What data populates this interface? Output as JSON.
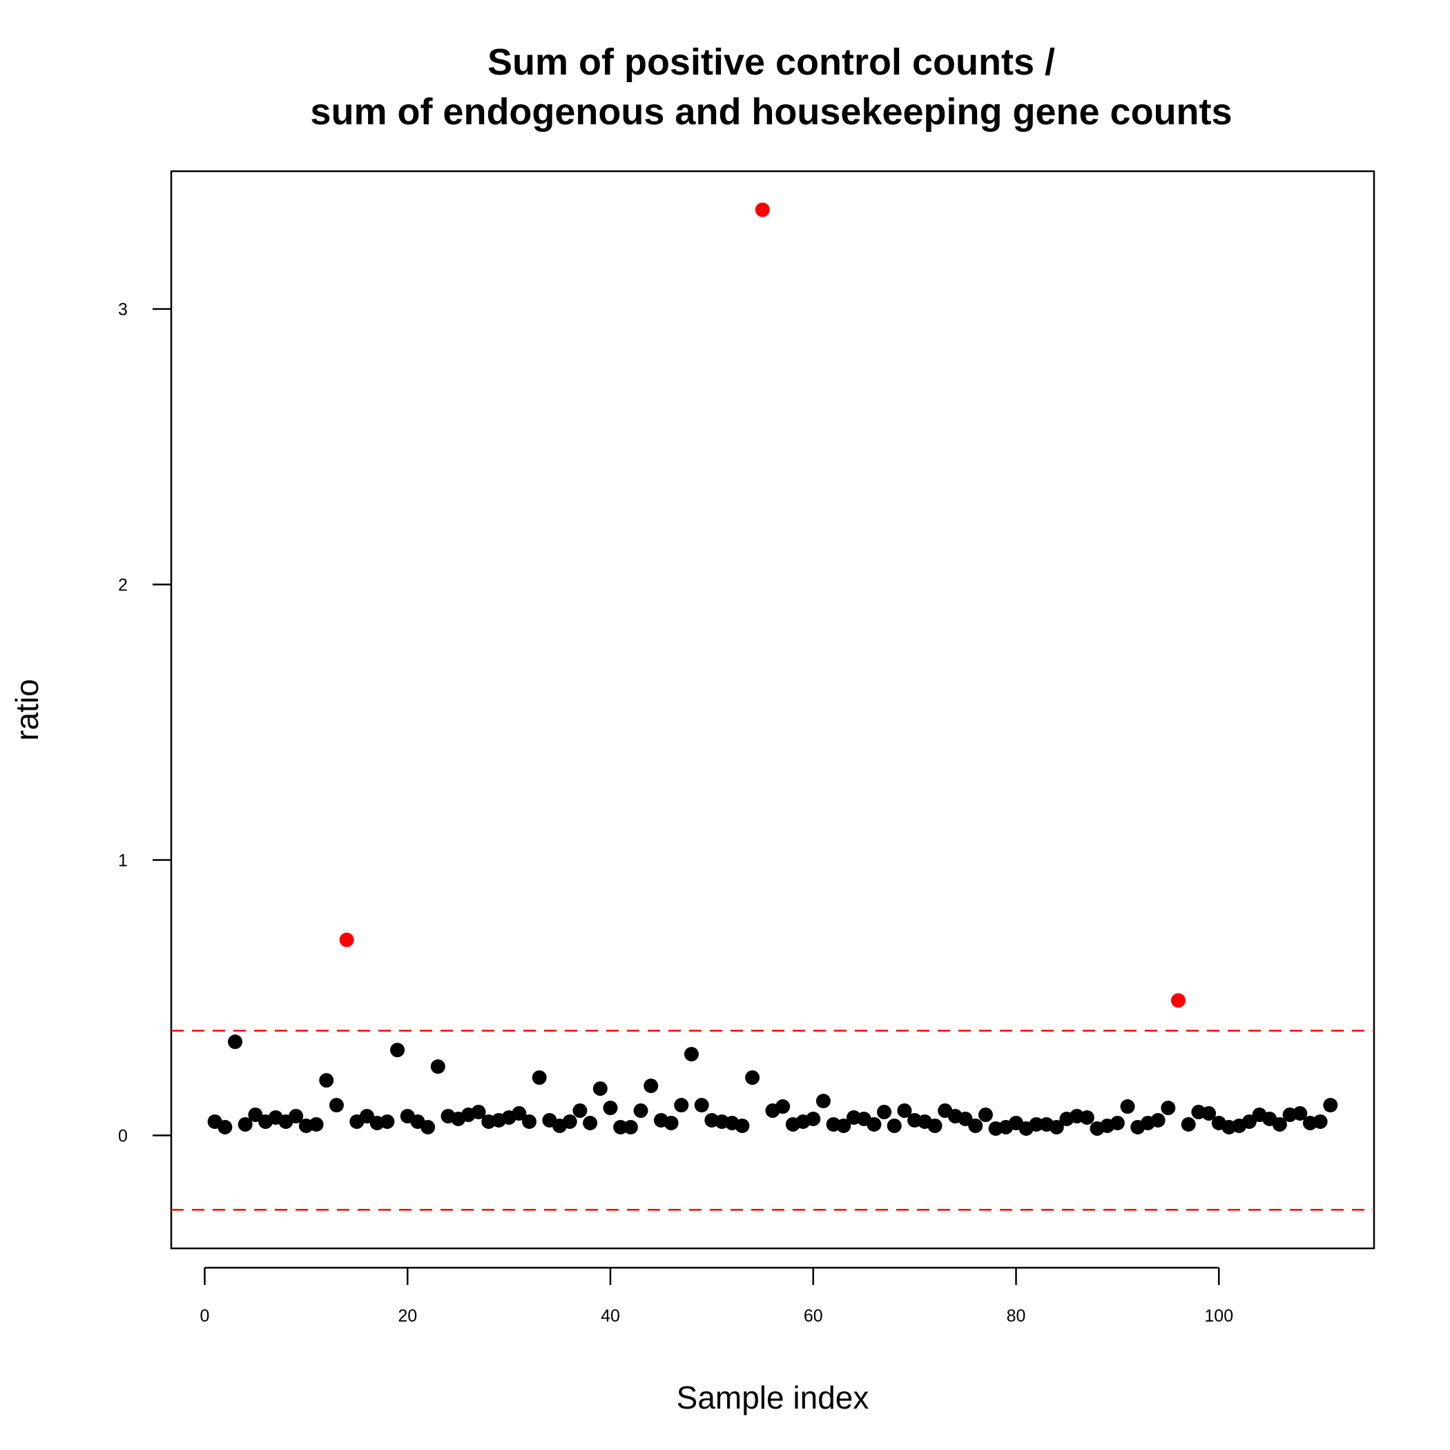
{
  "chart_data": {
    "type": "scatter",
    "title": [
      "Sum of positive control counts /",
      "sum of endogenous and housekeeping gene counts"
    ],
    "xlabel": "Sample index",
    "ylabel": "ratio",
    "xlim": [
      -3.3,
      115.3
    ],
    "ylim": [
      -0.41,
      3.5
    ],
    "x_ticks": [
      0,
      20,
      40,
      60,
      80,
      100
    ],
    "y_ticks": [
      0,
      1,
      2,
      3
    ],
    "grid": false,
    "legend": "none",
    "threshold_lines": {
      "style": "dashed",
      "color": "#ff0000",
      "values": [
        0.38,
        -0.27
      ]
    },
    "colors": {
      "normal": "#000000",
      "outlier": "#ff0000"
    },
    "series": [
      {
        "color": "#000000",
        "points": [
          [
            1,
            0.05
          ],
          [
            2,
            0.03
          ],
          [
            3,
            0.34
          ],
          [
            4,
            0.04
          ],
          [
            5,
            0.075
          ],
          [
            6,
            0.05
          ],
          [
            7,
            0.065
          ],
          [
            8,
            0.05
          ],
          [
            9,
            0.07
          ],
          [
            10,
            0.035
          ],
          [
            11,
            0.04
          ],
          [
            12,
            0.2
          ],
          [
            13,
            0.11
          ],
          [
            15,
            0.05
          ],
          [
            16,
            0.07
          ],
          [
            17,
            0.045
          ],
          [
            18,
            0.05
          ],
          [
            19,
            0.31
          ],
          [
            20,
            0.07
          ],
          [
            21,
            0.05
          ],
          [
            22,
            0.03
          ],
          [
            23,
            0.25
          ],
          [
            24,
            0.07
          ],
          [
            25,
            0.06
          ],
          [
            26,
            0.075
          ],
          [
            27,
            0.085
          ],
          [
            28,
            0.05
          ],
          [
            29,
            0.055
          ],
          [
            30,
            0.065
          ],
          [
            31,
            0.08
          ],
          [
            32,
            0.05
          ],
          [
            33,
            0.21
          ],
          [
            34,
            0.055
          ],
          [
            35,
            0.035
          ],
          [
            36,
            0.05
          ],
          [
            37,
            0.09
          ],
          [
            38,
            0.045
          ],
          [
            39,
            0.17
          ],
          [
            40,
            0.1
          ],
          [
            41,
            0.03
          ],
          [
            42,
            0.03
          ],
          [
            43,
            0.09
          ],
          [
            44,
            0.18
          ],
          [
            45,
            0.055
          ],
          [
            46,
            0.045
          ],
          [
            47,
            0.11
          ],
          [
            48,
            0.295
          ],
          [
            49,
            0.11
          ],
          [
            50,
            0.055
          ],
          [
            51,
            0.05
          ],
          [
            52,
            0.045
          ],
          [
            53,
            0.035
          ],
          [
            54,
            0.21
          ],
          [
            56,
            0.09
          ],
          [
            57,
            0.105
          ],
          [
            58,
            0.04
          ],
          [
            59,
            0.05
          ],
          [
            60,
            0.06
          ],
          [
            61,
            0.125
          ],
          [
            62,
            0.04
          ],
          [
            63,
            0.035
          ],
          [
            64,
            0.065
          ],
          [
            65,
            0.06
          ],
          [
            66,
            0.04
          ],
          [
            67,
            0.085
          ],
          [
            68,
            0.035
          ],
          [
            69,
            0.09
          ],
          [
            70,
            0.055
          ],
          [
            71,
            0.05
          ],
          [
            72,
            0.035
          ],
          [
            73,
            0.09
          ],
          [
            74,
            0.07
          ],
          [
            75,
            0.06
          ],
          [
            76,
            0.035
          ],
          [
            77,
            0.075
          ],
          [
            78,
            0.025
          ],
          [
            79,
            0.03
          ],
          [
            80,
            0.045
          ],
          [
            81,
            0.025
          ],
          [
            82,
            0.04
          ],
          [
            83,
            0.04
          ],
          [
            84,
            0.03
          ],
          [
            85,
            0.06
          ],
          [
            86,
            0.07
          ],
          [
            87,
            0.065
          ],
          [
            88,
            0.025
          ],
          [
            89,
            0.035
          ],
          [
            90,
            0.045
          ],
          [
            91,
            0.105
          ],
          [
            92,
            0.03
          ],
          [
            93,
            0.045
          ],
          [
            94,
            0.055
          ],
          [
            95,
            0.1
          ],
          [
            97,
            0.04
          ],
          [
            98,
            0.085
          ],
          [
            99,
            0.08
          ],
          [
            100,
            0.045
          ],
          [
            101,
            0.03
          ],
          [
            102,
            0.035
          ],
          [
            103,
            0.05
          ],
          [
            104,
            0.075
          ],
          [
            105,
            0.06
          ],
          [
            106,
            0.04
          ],
          [
            107,
            0.075
          ],
          [
            108,
            0.08
          ],
          [
            109,
            0.045
          ],
          [
            110,
            0.05
          ],
          [
            111,
            0.11
          ]
        ]
      },
      {
        "color": "#ff0000",
        "points": [
          [
            14,
            0.71
          ],
          [
            55,
            3.36
          ],
          [
            96,
            0.49
          ]
        ]
      }
    ]
  }
}
